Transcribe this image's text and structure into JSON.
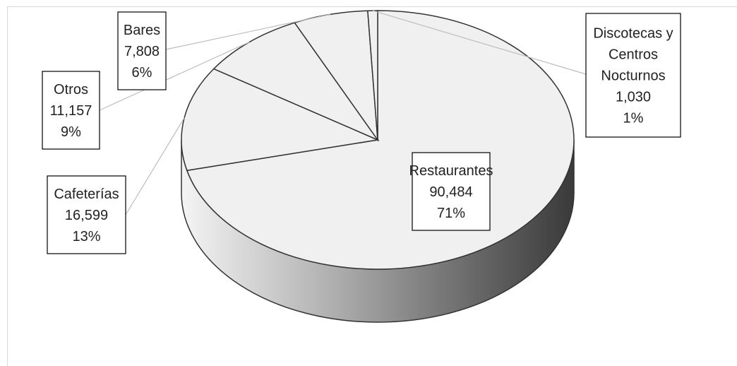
{
  "chart_data": {
    "type": "pie",
    "title": "",
    "three_d": true,
    "legend": "none",
    "series": [
      {
        "slices": [
          {
            "label": "Restaurantes",
            "value": 90484,
            "percent": "71%",
            "value_text": "90,484",
            "label_lines": [
              "Restaurantes"
            ],
            "color": "#f0f0f0"
          },
          {
            "label": "Cafeterías",
            "value": 16599,
            "percent": "13%",
            "value_text": "16,599",
            "label_lines": [
              "Cafeterías"
            ],
            "color": "#f0f0f0"
          },
          {
            "label": "Otros",
            "value": 11157,
            "percent": "9%",
            "value_text": "11,157",
            "label_lines": [
              "Otros"
            ],
            "color": "#f0f0f0"
          },
          {
            "label": "Bares",
            "value": 7808,
            "percent": "6%",
            "value_text": "7,808",
            "label_lines": [
              "Bares"
            ],
            "color": "#f0f0f0"
          },
          {
            "label": "Discotecas y Centros Nocturnos",
            "value": 1030,
            "percent": "1%",
            "value_text": "1,030",
            "label_lines": [
              "Discotecas y",
              "Centros",
              "Nocturnos"
            ],
            "color": "#f0f0f0"
          }
        ]
      }
    ],
    "edge_color": "#333333",
    "side_gradient": [
      "#f2f2f2",
      "#a8a8a8",
      "#3c3c3c"
    ]
  }
}
